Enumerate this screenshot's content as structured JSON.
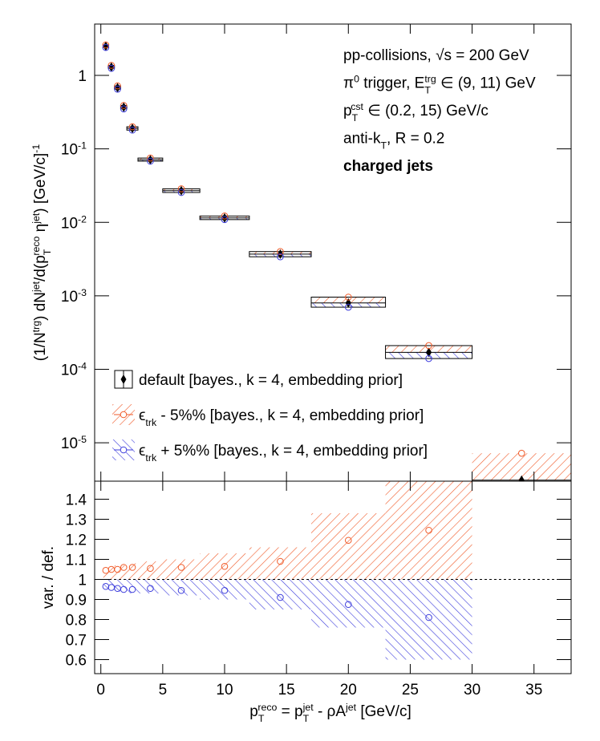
{
  "chart_data": [
    {
      "type": "scatter",
      "log_y": true,
      "legend": "bottom-left",
      "ylabel": [
        {
          "text": "(1/N"
        },
        {
          "sup": "trg"
        },
        {
          "text": ") dN"
        },
        {
          "sup": "jet"
        },
        {
          "text": "/d(p"
        },
        {
          "sub": "T",
          "sup": "reco"
        },
        {
          "text": " η"
        },
        {
          "sup": "jet"
        },
        {
          "text": ") [GeV/c]"
        },
        {
          "sup": "-1"
        }
      ],
      "annotations": [
        [
          {
            "text": "pp-collisions, √s = 200 GeV"
          }
        ],
        [
          {
            "text": "π"
          },
          {
            "sup": "0"
          },
          {
            "text": " trigger, E"
          },
          {
            "sub": "T",
            "sup": "trg"
          },
          {
            "text": " ∈ (9, 11) GeV"
          }
        ],
        [
          {
            "text": "p"
          },
          {
            "sub": "T",
            "sup": "cst"
          },
          {
            "text": " ∈ (0.2, 15) GeV/c"
          }
        ],
        [
          {
            "text": "anti-k"
          },
          {
            "sub": "T"
          },
          {
            "text": ", R = 0.2"
          }
        ],
        [
          {
            "bold": "charged jets"
          }
        ]
      ],
      "x": [
        0.4,
        0.85,
        1.35,
        1.85,
        2.55,
        4,
        6.5,
        10,
        14.5,
        20,
        26.5,
        34
      ],
      "bins": [
        0.2,
        0.6,
        1.1,
        1.6,
        2.1,
        3,
        5,
        8,
        12,
        17,
        23,
        30,
        38
      ],
      "series": [
        {
          "name": [
            {
              "text": "default [bayes., k = 4, embedding prior]"
            }
          ],
          "color": "#000000",
          "values": [
            2.5,
            1.3,
            0.68,
            0.37,
            0.19,
            0.071,
            0.027,
            0.0115,
            0.0037,
            0.0008,
            0.00017,
            3.1e-06
          ]
        },
        {
          "name": [
            {
              "text": "ϵ"
            },
            {
              "sub": "trk"
            },
            {
              "text": " - 5%% [bayes., k = 4, embedding prior]"
            }
          ],
          "color": "#f05a28",
          "values": [
            2.6,
            1.37,
            0.72,
            0.39,
            0.2,
            0.075,
            0.0286,
            0.0122,
            0.004,
            0.00096,
            0.00021,
            7.2e-06
          ]
        },
        {
          "name": [
            {
              "text": "ϵ"
            },
            {
              "sub": "trk"
            },
            {
              "text": " + 5%% [bayes., k = 4, embedding prior]"
            }
          ],
          "color": "#3c3cdc",
          "values": [
            2.4,
            1.25,
            0.65,
            0.35,
            0.18,
            0.068,
            0.0255,
            0.0109,
            0.0034,
            0.0007,
            0.00014,
            null
          ]
        }
      ],
      "xlim": [
        -0.5,
        38
      ],
      "xticks": [
        0,
        5,
        10,
        15,
        20,
        25,
        30,
        35
      ],
      "ylim": [
        3e-06,
        5
      ],
      "yticks": [
        {
          "value": 1e-05,
          "label": [
            {
              "text": "10"
            },
            {
              "sup": "-5"
            }
          ]
        },
        {
          "value": 0.0001,
          "label": [
            {
              "text": "10"
            },
            {
              "sup": "-4"
            }
          ]
        },
        {
          "value": 0.001,
          "label": [
            {
              "text": "10"
            },
            {
              "sup": "-3"
            }
          ]
        },
        {
          "value": 0.01,
          "label": [
            {
              "text": "10"
            },
            {
              "sup": "-2"
            }
          ]
        },
        {
          "value": 0.1,
          "label": [
            {
              "text": "10"
            },
            {
              "sup": "-1"
            }
          ]
        },
        1
      ]
    },
    {
      "type": "scatter",
      "log_y": false,
      "ylabel": [
        {
          "text": "var. / def."
        }
      ],
      "xlabel": [
        {
          "text": "p"
        },
        {
          "sub": "T",
          "sup": "reco"
        },
        {
          "text": " = p"
        },
        {
          "sub": "T",
          "sup": "jet"
        },
        {
          "text": " - ρA"
        },
        {
          "sup": "jet"
        },
        {
          "text": " [GeV/c]"
        }
      ],
      "x": [
        0.4,
        0.85,
        1.35,
        1.85,
        2.55,
        4,
        6.5,
        10,
        14.5,
        20,
        26.5,
        34
      ],
      "bins": [
        0.2,
        0.6,
        1.1,
        1.6,
        2.1,
        3,
        5,
        8,
        12,
        17,
        23,
        30,
        38
      ],
      "hline": 1,
      "series": [
        {
          "color": "#f05a28",
          "values": [
            1.045,
            1.05,
            1.05,
            1.06,
            1.06,
            1.055,
            1.06,
            1.065,
            1.09,
            1.195,
            1.245,
            null
          ],
          "band": [
            1.06,
            1.06,
            1.07,
            1.07,
            1.08,
            1.09,
            1.1,
            1.13,
            1.16,
            1.33,
            1.49,
            null
          ]
        },
        {
          "color": "#3c3cdc",
          "values": [
            0.965,
            0.96,
            0.955,
            0.95,
            0.95,
            0.955,
            0.945,
            0.945,
            0.91,
            0.875,
            0.81,
            null
          ],
          "band": [
            0.95,
            0.95,
            0.94,
            0.94,
            0.93,
            0.93,
            0.92,
            0.9,
            0.85,
            0.76,
            0.6,
            null
          ]
        }
      ],
      "xlim": [
        -0.5,
        38
      ],
      "xticks": [
        0,
        5,
        10,
        15,
        20,
        25,
        30,
        35
      ],
      "ylim": [
        0.53,
        1.49
      ],
      "yticks": [
        0.6,
        0.7,
        0.8,
        0.9,
        1,
        1.1,
        1.2,
        1.3,
        1.4
      ]
    }
  ]
}
